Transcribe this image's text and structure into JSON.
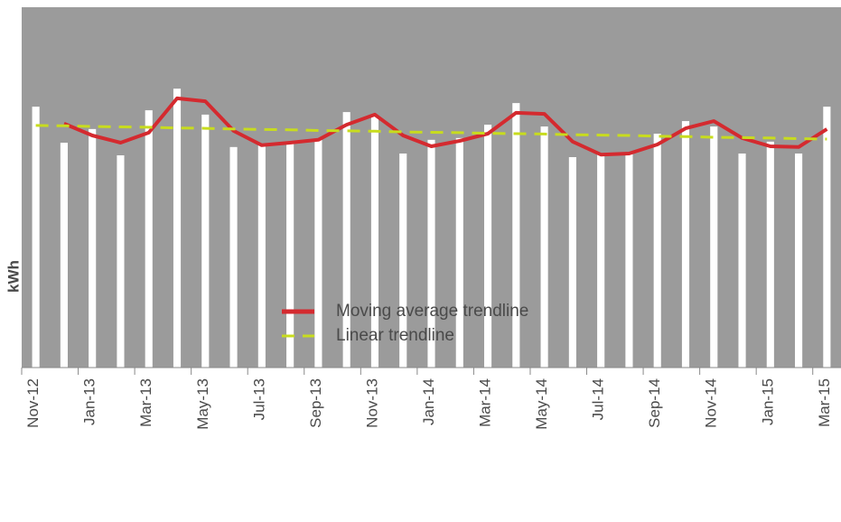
{
  "chart_data": {
    "type": "bar",
    "y_label": "kWh",
    "categories": [
      "Nov-12",
      null,
      "Jan-13",
      null,
      "Mar-13",
      null,
      "May-13",
      null,
      "Jul-13",
      null,
      "Sep-13",
      null,
      "Nov-13",
      null,
      "Jan-14",
      null,
      "Mar-14",
      null,
      "May-14",
      null,
      "Jul-14",
      null,
      "Sep-14",
      null,
      "Nov-14",
      null,
      "Jan-15",
      null,
      "Mar-15"
    ],
    "values": [
      72.4,
      62.4,
      66.2,
      58.9,
      71.4,
      77.4,
      70.2,
      61.2,
      61.9,
      62.4,
      63.2,
      70.9,
      69.9,
      59.4,
      63.2,
      63.7,
      67.4,
      73.4,
      66.9,
      58.4,
      59.4,
      59.4,
      64.9,
      68.4,
      66.9,
      59.4,
      62.7,
      59.4,
      72.4
    ],
    "color": "#ffffff",
    "background": "#9b9b9b",
    "ylim": [
      0,
      100
    ],
    "series": [
      {
        "name": "Moving average trendline",
        "color": "#d42a2f",
        "style": "solid",
        "values": [
          null,
          67.7,
          64.4,
          62.4,
          65.2,
          74.7,
          73.9,
          65.7,
          61.7,
          62.4,
          63.2,
          67.4,
          70.2,
          64.4,
          61.4,
          62.9,
          64.9,
          70.7,
          70.4,
          62.7,
          59.1,
          59.4,
          61.9,
          66.4,
          68.4,
          63.7,
          61.4,
          61.2,
          66.2
        ]
      },
      {
        "name": "Linear trendline",
        "color": "#c8dc1e",
        "style": "dashed",
        "values": [
          67.2,
          67.1,
          66.9,
          66.8,
          66.7,
          66.5,
          66.4,
          66.2,
          66.1,
          66.0,
          65.8,
          65.7,
          65.6,
          65.4,
          65.3,
          65.2,
          65.0,
          64.9,
          64.8,
          64.6,
          64.5,
          64.4,
          64.2,
          64.1,
          63.9,
          63.8,
          63.7,
          63.5,
          63.4
        ]
      }
    ]
  }
}
